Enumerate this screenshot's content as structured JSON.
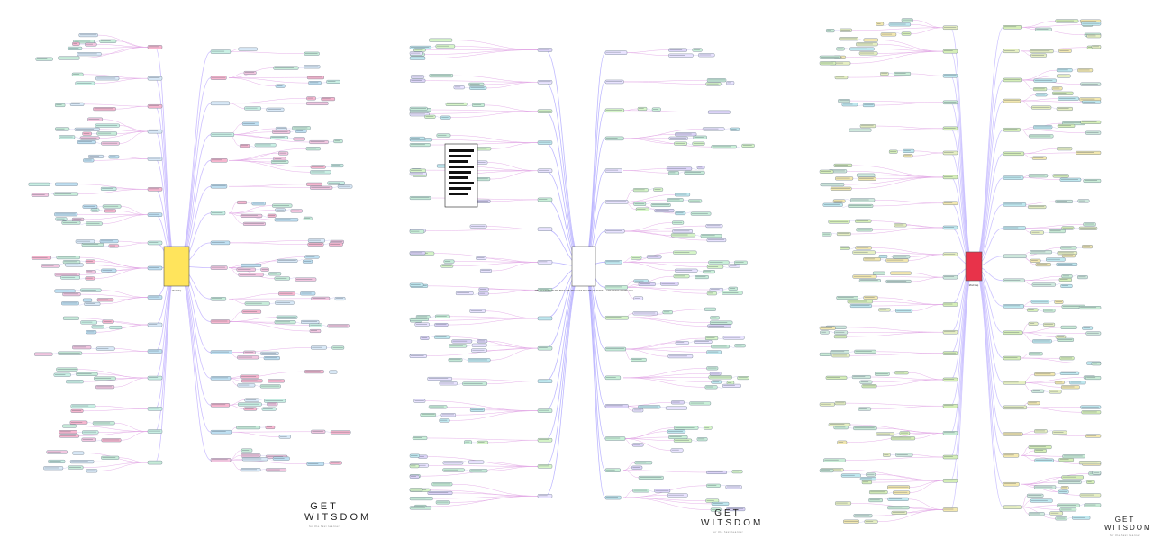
{
  "brand": {
    "line1": "GET",
    "line2": "WITSDOM",
    "tagline": "for the fast learner"
  },
  "maps": [
    {
      "name": "mind-map-1",
      "center_title": "Mind Map",
      "palette": [
        "#f2c6e0",
        "#bfe0f2",
        "#c7ecd9",
        "#f7b6cf",
        "#d9e9f7",
        "#c9f0e4"
      ],
      "edge_color": "#c7b8ff",
      "center_color": "#ffe45c"
    },
    {
      "name": "mind-map-2",
      "center_title": "THE BIGGEST AND THE BEST, THE SMALLEST AND THE WEAKEST — GREATNESS WITHIN YOU",
      "palette": [
        "#c9f0d8",
        "#bfe8ef",
        "#d6f5c8",
        "#dcd3f7",
        "#e9e3ff",
        "#c7ecd9"
      ],
      "edge_color": "#b7b0ff",
      "center_color": "#ffffff"
    },
    {
      "name": "mind-map-3",
      "center_title": "Mind Map",
      "palette": [
        "#c9ecd6",
        "#d6efb8",
        "#bfe8ef",
        "#e6efc2",
        "#cfe9dd",
        "#f3e8b0"
      ],
      "edge_color": "#c9bfff",
      "center_color": "#e8334a"
    }
  ]
}
